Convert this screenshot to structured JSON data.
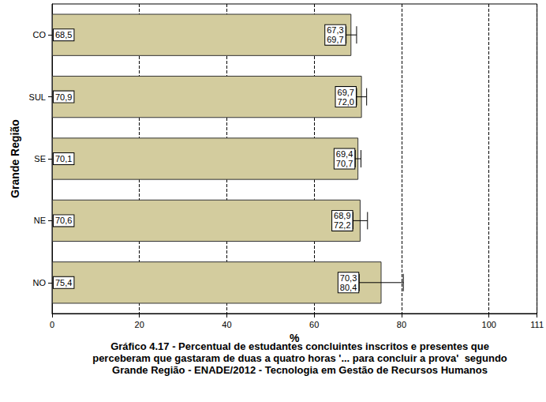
{
  "chart_data": {
    "type": "bar",
    "orientation": "horizontal",
    "title": "Gráfico 4.17 - Percentual de estudantes concluintes inscritos e presentes que\nperceberam que gastaram de duas a quatro horas '... para concluir a prova'  segundo\nGrande Região - ENADE/2012 - Tecnologia em Gestão de Recursos Humanos",
    "x_label": "%",
    "y_label": "Grande Região",
    "categories": [
      "CO",
      "SUL",
      "SE",
      "NE",
      "NO"
    ],
    "values": [
      68.5,
      70.9,
      70.1,
      70.6,
      75.4
    ],
    "value_labels": [
      "68,5",
      "70,9",
      "70,1",
      "70,6",
      "75,4"
    ],
    "ci_low": [
      67.3,
      69.7,
      69.4,
      68.9,
      70.3
    ],
    "ci_high": [
      69.7,
      72.0,
      70.7,
      72.2,
      80.4
    ],
    "ci_low_labels": [
      "67,3",
      "69,7",
      "69,4",
      "68,9",
      "70,3"
    ],
    "ci_high_labels": [
      "69,7",
      "72,0",
      "70,7",
      "72,2",
      "80,4"
    ],
    "color": "#d3cc9e",
    "xlim": [
      0,
      111
    ],
    "xticks": [
      0,
      20,
      40,
      60,
      80,
      100
    ],
    "grid": true,
    "data_labels": true
  }
}
